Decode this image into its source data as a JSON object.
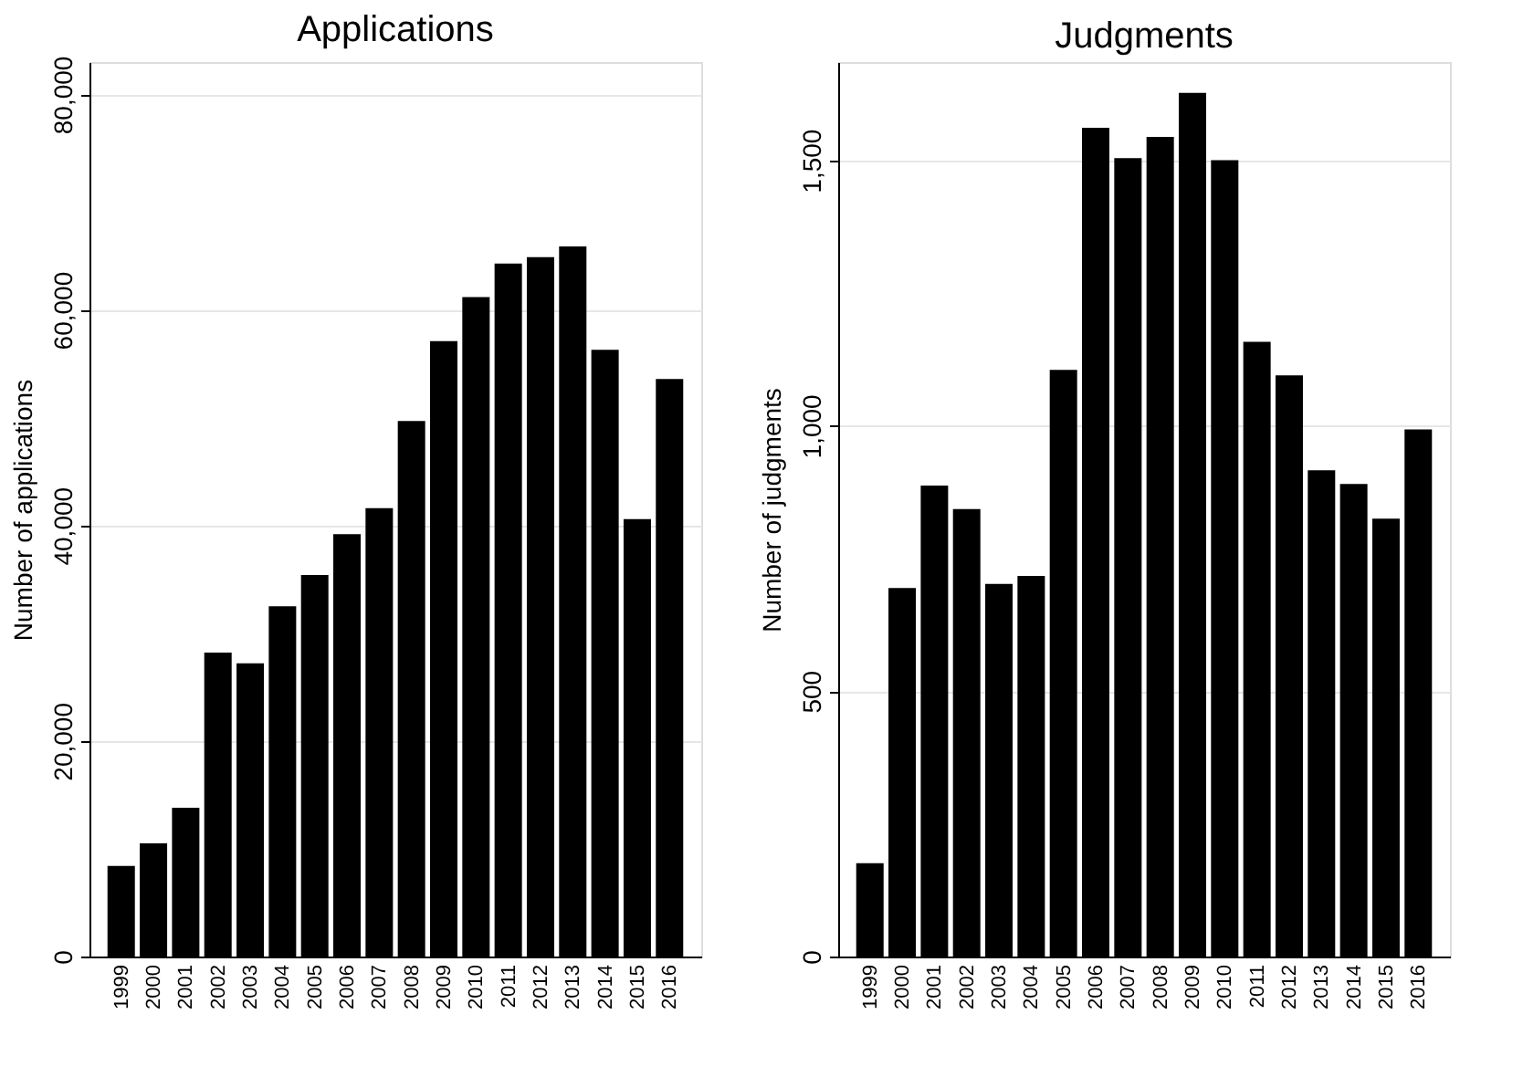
{
  "chart_data": [
    {
      "type": "bar",
      "title": "Applications",
      "ylabel": "Number of applications",
      "categories": [
        "1999",
        "2000",
        "2001",
        "2002",
        "2003",
        "2004",
        "2005",
        "2006",
        "2007",
        "2008",
        "2009",
        "2010",
        "2011",
        "2012",
        "2013",
        "2014",
        "2015",
        "2016"
      ],
      "values": [
        8400,
        10500,
        13800,
        28200,
        27200,
        32500,
        35400,
        39200,
        41600,
        49700,
        57100,
        61200,
        64300,
        64900,
        65900,
        56300,
        40600,
        53600
      ],
      "color": "#000000",
      "ylim": [
        0,
        83000
      ],
      "yticks": [
        {
          "value": 0,
          "label": "0"
        },
        {
          "value": 20000,
          "label": "20,000"
        },
        {
          "value": 40000,
          "label": "40,000"
        },
        {
          "value": 60000,
          "label": "60,000"
        },
        {
          "value": 80000,
          "label": "80,000"
        }
      ],
      "grid": "y"
    },
    {
      "type": "bar",
      "title": "Judgments",
      "ylabel": "Number of judgments",
      "categories": [
        "1999",
        "2000",
        "2001",
        "2002",
        "2003",
        "2004",
        "2005",
        "2006",
        "2007",
        "2008",
        "2009",
        "2010",
        "2011",
        "2012",
        "2013",
        "2014",
        "2015",
        "2016"
      ],
      "values": [
        176,
        694,
        887,
        843,
        702,
        717,
        1105,
        1561,
        1504,
        1544,
        1627,
        1500,
        1158,
        1095,
        916,
        890,
        825,
        993
      ],
      "color": "#000000",
      "ylim": [
        0,
        1685
      ],
      "yticks": [
        {
          "value": 0,
          "label": "0"
        },
        {
          "value": 500,
          "label": "500"
        },
        {
          "value": 1000,
          "label": "1,000"
        },
        {
          "value": 1500,
          "label": "1,500"
        }
      ],
      "grid": "y"
    }
  ]
}
